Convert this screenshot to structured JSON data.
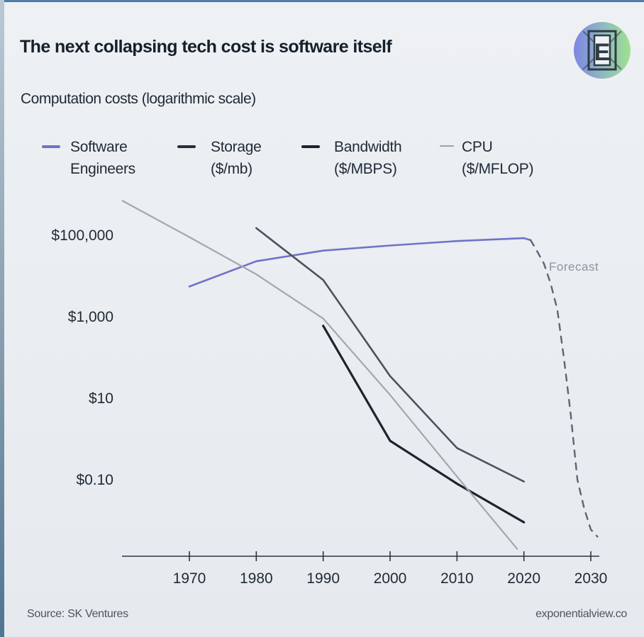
{
  "title": "The next collapsing tech cost is software itself",
  "subtitle": "Computation costs (logarithmic scale)",
  "logo": {
    "letter": "E",
    "colors": [
      "#7d86e6",
      "#9fe08f",
      "#2f3b46"
    ]
  },
  "legend": [
    {
      "line1": "Software",
      "line2": "Engineers",
      "color": "#6f73c8"
    },
    {
      "line1": "Storage",
      "line2": "($/mb)",
      "color": "#26303a"
    },
    {
      "line1": "Bandwidth",
      "line2": "($/MBPS)",
      "color": "#1c242d"
    },
    {
      "line1": "CPU",
      "line2": "($/MFLOP)",
      "color": "#9aa1a8"
    }
  ],
  "forecast_label": "Forecast",
  "source": "Source: SK Ventures",
  "website": "exponentialview.co",
  "chart_data": {
    "type": "line",
    "title": "The next collapsing tech cost is software itself",
    "subtitle": "Computation costs (logarithmic scale)",
    "xlabel": "",
    "ylabel": "",
    "yscale": "log",
    "xlim": [
      1960,
      2032
    ],
    "ylim": [
      0.002,
      1000000
    ],
    "x_ticks": [
      1970,
      1980,
      1990,
      2000,
      2010,
      2020,
      2030
    ],
    "y_ticks": [
      {
        "value": 100000,
        "label": "$100,000"
      },
      {
        "value": 1000,
        "label": "$1,000"
      },
      {
        "value": 10,
        "label": "$10"
      },
      {
        "value": 0.1,
        "label": "$0.10"
      }
    ],
    "grid": false,
    "legend_position": "top",
    "series": [
      {
        "name": "Software Engineers",
        "color": "#6f73c8",
        "style": "solid",
        "points": [
          [
            1970,
            5500
          ],
          [
            1980,
            23000
          ],
          [
            1990,
            42000
          ],
          [
            2000,
            56000
          ],
          [
            2010,
            72000
          ],
          [
            2020,
            85000
          ],
          [
            2021,
            76000
          ]
        ]
      },
      {
        "name": "Software Engineers forecast",
        "color": "#5e6670",
        "style": "dashed",
        "points": [
          [
            2021,
            76000
          ],
          [
            2022,
            40000
          ],
          [
            2023,
            20000
          ],
          [
            2024,
            6500
          ],
          [
            2025,
            1500
          ],
          [
            2026,
            90
          ],
          [
            2027,
            4
          ],
          [
            2028,
            0.1
          ],
          [
            2029,
            0.02
          ],
          [
            2030,
            0.006
          ],
          [
            2031,
            0.004
          ]
        ]
      },
      {
        "name": "Storage ($/mb)",
        "color": "#4a535c",
        "style": "solid",
        "points": [
          [
            1980,
            150000
          ],
          [
            1990,
            8000
          ],
          [
            2000,
            35
          ],
          [
            2010,
            0.6
          ],
          [
            2020,
            0.09
          ]
        ]
      },
      {
        "name": "Bandwidth ($/MBPS)",
        "color": "#1c242d",
        "style": "solid",
        "points": [
          [
            1990,
            600
          ],
          [
            2000,
            0.9
          ],
          [
            2010,
            0.08
          ],
          [
            2020,
            0.009
          ]
        ]
      },
      {
        "name": "CPU ($/MFLOP)",
        "color": "#a2a8ae",
        "style": "solid",
        "points": [
          [
            1960,
            700000
          ],
          [
            1970,
            90000
          ],
          [
            1980,
            11000
          ],
          [
            1990,
            900
          ],
          [
            2000,
            12
          ],
          [
            2010,
            0.12
          ],
          [
            2019,
            0.002
          ]
        ]
      }
    ]
  }
}
